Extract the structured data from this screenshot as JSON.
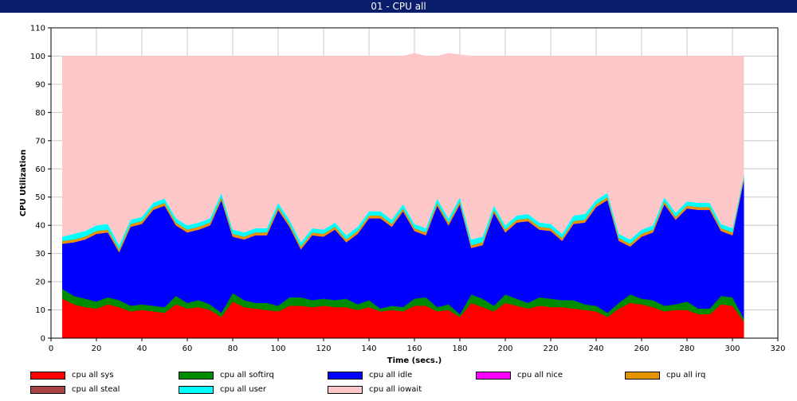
{
  "title": "01 - CPU all",
  "chart_data": {
    "type": "area",
    "stacked": true,
    "xlabel": "Time (secs.)",
    "ylabel": "CPU Utilization",
    "xlim": [
      0,
      320
    ],
    "ylim": [
      0,
      110
    ],
    "xticks": [
      0,
      20,
      40,
      60,
      80,
      100,
      120,
      140,
      160,
      180,
      200,
      220,
      240,
      260,
      280,
      300,
      320
    ],
    "yticks": [
      0,
      10,
      20,
      30,
      40,
      50,
      60,
      70,
      80,
      90,
      100,
      110
    ],
    "grid": true,
    "legend_position": "bottom",
    "x": [
      5,
      10,
      15,
      20,
      25,
      30,
      35,
      40,
      45,
      50,
      55,
      60,
      65,
      70,
      75,
      80,
      85,
      90,
      95,
      100,
      105,
      110,
      115,
      120,
      125,
      130,
      135,
      140,
      145,
      150,
      155,
      160,
      165,
      170,
      175,
      180,
      185,
      190,
      195,
      200,
      205,
      210,
      215,
      220,
      225,
      230,
      235,
      240,
      245,
      250,
      255,
      260,
      265,
      270,
      275,
      280,
      285,
      290,
      295,
      300,
      305
    ],
    "series": [
      {
        "name": "cpu all sys",
        "color": "#ff0000",
        "values": [
          14,
          12,
          11,
          10.5,
          12,
          11,
          9.5,
          10,
          9.5,
          9,
          12,
          10.5,
          11,
          10,
          7.5,
          13,
          11,
          10.5,
          10,
          9.5,
          11.5,
          11.5,
          11,
          11.5,
          11,
          11,
          10,
          11,
          9.5,
          10,
          9.5,
          11.5,
          11.5,
          9.5,
          10,
          7.5,
          12.5,
          11,
          9.5,
          12.5,
          11.5,
          10.5,
          11.5,
          11,
          11,
          10.5,
          10,
          9.5,
          7.5,
          10.5,
          12.5,
          12,
          11,
          9.5,
          10,
          10,
          8.5,
          8.5,
          12,
          11.5,
          6
        ]
      },
      {
        "name": "cpu all softirq",
        "color": "#008c00",
        "values": [
          3.5,
          3,
          3,
          2.5,
          2.5,
          2.5,
          2,
          2,
          2,
          2,
          3,
          2,
          2.5,
          2,
          1.5,
          3,
          2.5,
          2,
          2.5,
          2,
          3,
          3,
          2.5,
          2.5,
          2.5,
          3,
          2,
          2.5,
          1,
          1.5,
          1.5,
          2.5,
          3,
          1.5,
          2,
          1,
          3,
          3,
          2,
          3,
          2.5,
          2,
          3,
          3,
          2.5,
          3,
          2,
          2,
          1.5,
          2,
          3,
          2,
          2.5,
          2,
          2,
          3,
          2,
          2,
          3,
          3,
          1
        ]
      },
      {
        "name": "cpu all idle",
        "color": "#0000ff",
        "values": [
          16,
          19,
          21,
          24,
          23,
          17,
          28,
          28.5,
          34,
          36,
          25,
          25,
          25,
          28,
          40,
          20,
          21.5,
          24,
          24,
          34,
          25,
          17,
          23,
          22,
          25,
          20,
          25,
          29,
          32,
          28,
          34,
          24,
          22,
          36,
          28,
          39,
          16.5,
          19,
          33,
          22,
          27,
          29,
          24,
          24,
          21,
          27,
          29,
          35,
          40,
          22,
          17,
          22,
          24,
          36,
          30,
          33,
          35,
          35,
          23,
          22,
          49
        ]
      },
      {
        "name": "cpu all nice",
        "color": "#ff00ff",
        "values": [
          0,
          0,
          0,
          0,
          0,
          0,
          0,
          0,
          0,
          0,
          0,
          0,
          0,
          0,
          0,
          0,
          0,
          0,
          0,
          0,
          0,
          0,
          0,
          0,
          0,
          0,
          0,
          0,
          0,
          0,
          0,
          0,
          0,
          0,
          0,
          0,
          0,
          0,
          0,
          0,
          0,
          0,
          0,
          0,
          0,
          0,
          0,
          0,
          0,
          0,
          0,
          0,
          0,
          0,
          0,
          0,
          0,
          0,
          0,
          0,
          0
        ]
      },
      {
        "name": "cpu all irq",
        "color": "#e69500",
        "values": [
          1,
          1,
          1,
          1,
          1,
          1,
          1,
          1,
          1,
          1,
          1,
          1,
          1,
          1,
          1,
          1,
          1,
          1,
          1,
          1,
          1,
          1,
          1,
          1,
          1,
          1,
          1,
          1,
          1,
          1,
          1,
          1,
          1,
          1,
          1,
          1,
          1,
          1,
          1,
          1,
          1,
          1,
          1,
          1,
          1,
          1,
          1,
          1,
          1,
          1,
          1,
          1,
          1,
          1,
          1,
          1,
          1,
          1,
          1,
          1,
          1
        ]
      },
      {
        "name": "cpu all steal",
        "color": "#a84444",
        "values": [
          0,
          0,
          0,
          0,
          0,
          0,
          0,
          0,
          0,
          0,
          0,
          0,
          0,
          0,
          0,
          0,
          0,
          0,
          0,
          0,
          0,
          0,
          0,
          0,
          0,
          0,
          0,
          0,
          0,
          0,
          0,
          0,
          0,
          0,
          0,
          0,
          0,
          0,
          0,
          0,
          0,
          0,
          0,
          0,
          0,
          0,
          0,
          0,
          0,
          0,
          0,
          0,
          0,
          0,
          0,
          0,
          0,
          0,
          0,
          0,
          0
        ]
      },
      {
        "name": "cpu all user",
        "color": "#00ffff",
        "values": [
          1.5,
          2,
          2,
          2,
          2,
          1.5,
          1.5,
          1.5,
          1.5,
          1.5,
          1.5,
          1.5,
          1.5,
          1.5,
          1.5,
          1.5,
          1.5,
          1.5,
          1.5,
          1.5,
          1.5,
          1.5,
          1.5,
          1.5,
          1.5,
          1.5,
          1.5,
          1.5,
          1.5,
          1.5,
          1.5,
          1.5,
          1.5,
          1.5,
          1.5,
          1.5,
          2,
          2,
          1.5,
          1.5,
          1.5,
          1.5,
          1.5,
          1.5,
          1.5,
          2,
          2,
          1.5,
          1.5,
          1.5,
          1.5,
          1.5,
          1.5,
          1.5,
          1.5,
          1.5,
          1.5,
          1.5,
          1.5,
          1.5,
          1
        ]
      },
      {
        "name": "cpu all iowait",
        "color": "#ffc8c8",
        "values": [
          64,
          63,
          62,
          60,
          59.5,
          67,
          58,
          57,
          52,
          50.5,
          57.5,
          60,
          59,
          57.5,
          48.5,
          61.5,
          62.5,
          61,
          61,
          52,
          58,
          66,
          61,
          61.5,
          59,
          63.5,
          60.5,
          55,
          55,
          58,
          52.5,
          60.5,
          61,
          50.5,
          58.5,
          50.5,
          65,
          64,
          53,
          60,
          56.5,
          56,
          59,
          59.5,
          63,
          56.5,
          56,
          51,
          48.5,
          63,
          65,
          61.5,
          60,
          50,
          55.5,
          51.5,
          52,
          52,
          59.5,
          61,
          42
        ]
      }
    ]
  }
}
